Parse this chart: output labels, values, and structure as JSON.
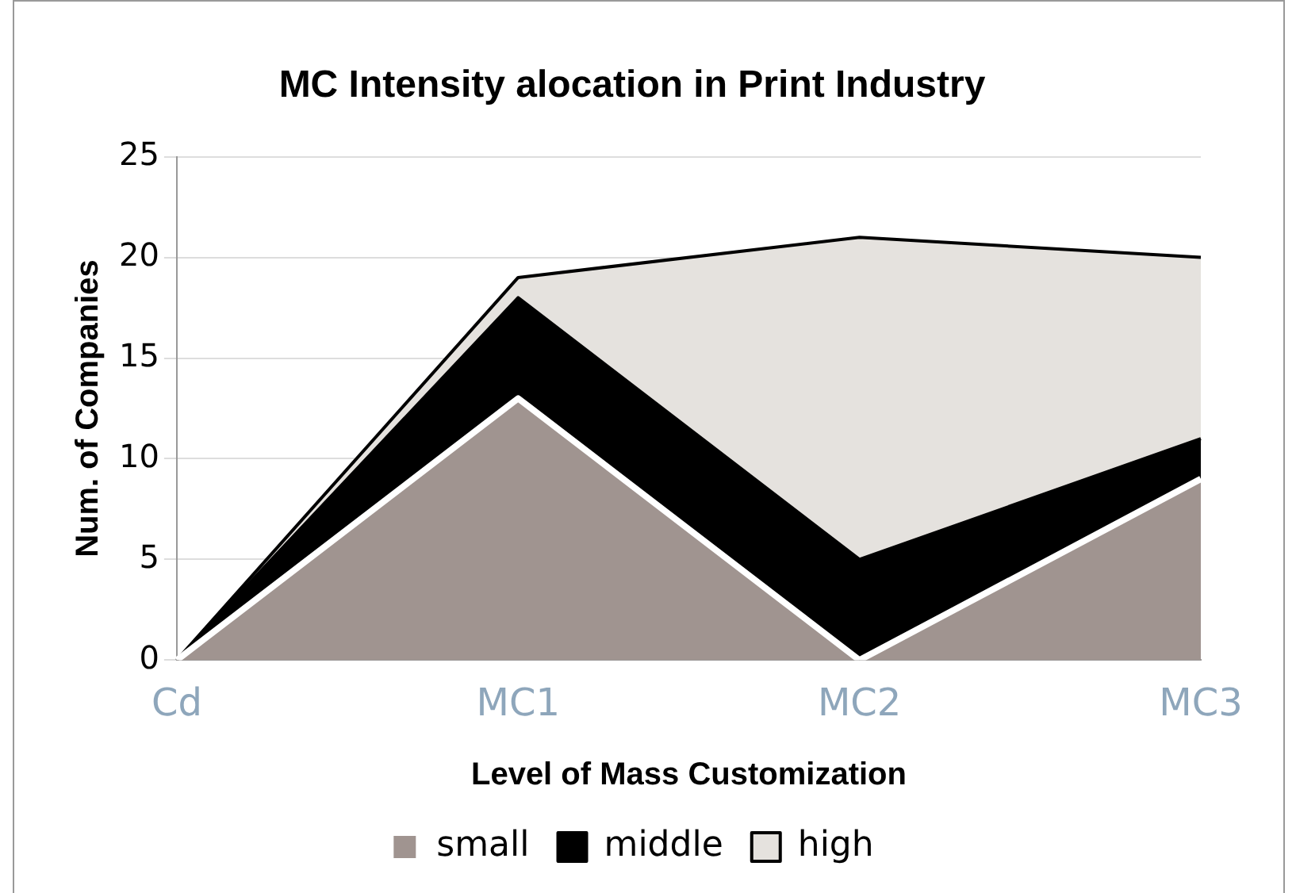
{
  "chart_data": {
    "type": "area",
    "title": "MC Intensity alocation in Print Industry",
    "xlabel": "Level of Mass Customization",
    "ylabel": "Num. of Companies",
    "categories": [
      "Cd",
      "MC1",
      "MC2",
      "MC3"
    ],
    "stacked": true,
    "series": [
      {
        "name": "small",
        "color": "#a09490",
        "values": [
          0,
          13,
          0,
          9
        ]
      },
      {
        "name": "middle",
        "color": "#000000",
        "values": [
          0,
          5,
          5,
          2
        ]
      },
      {
        "name": "high",
        "color": "#e5e2de",
        "values": [
          0,
          1,
          16,
          9
        ]
      }
    ],
    "ylim": [
      0,
      25
    ],
    "yticks": [
      0,
      5,
      10,
      15,
      20,
      25
    ],
    "grid": "y",
    "legend": "bottom"
  }
}
